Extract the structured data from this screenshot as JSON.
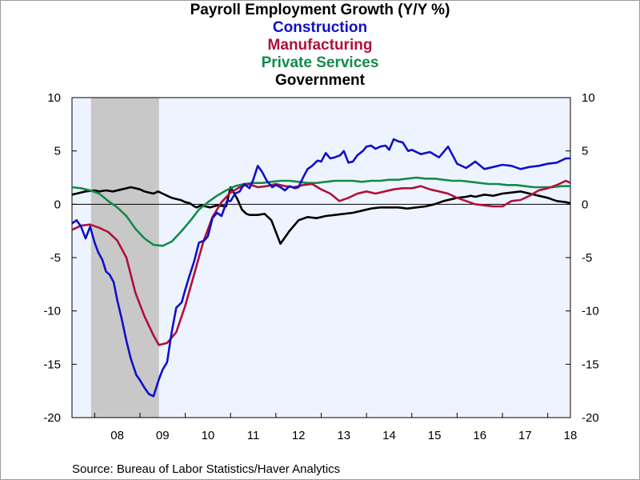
{
  "title": "Payroll Employment Growth (Y/Y %)",
  "legend": [
    {
      "name": "Construction",
      "color": "#1010c8"
    },
    {
      "name": "Manufacturing",
      "color": "#b0103a"
    },
    {
      "name": "Private Services",
      "color": "#138a4a"
    },
    {
      "name": "Government",
      "color": "#000000"
    }
  ],
  "source": "Source:  Bureau of Labor Statistics/Haver Analytics",
  "colors": {
    "plot_background": "#eef4ff",
    "recession_shade": "#c8c8c8",
    "zero_line": "#000000"
  },
  "chart_data": {
    "type": "line",
    "title": "Payroll Employment Growth (Y/Y %)",
    "xlabel": "",
    "ylabel": "",
    "x_range": [
      2007.5,
      2018.5
    ],
    "ylim": [
      -20,
      10
    ],
    "yticks": [
      10,
      5,
      0,
      -5,
      -10,
      -15,
      -20
    ],
    "ytick_labels": [
      "10",
      "5",
      "0",
      "-5",
      "-10",
      "-15",
      "-20"
    ],
    "xtick_labels": [
      {
        "x": 2008.5,
        "label": "08"
      },
      {
        "x": 2009.5,
        "label": "09"
      },
      {
        "x": 2010.5,
        "label": "10"
      },
      {
        "x": 2011.5,
        "label": "11"
      },
      {
        "x": 2012.5,
        "label": "12"
      },
      {
        "x": 2013.5,
        "label": "13"
      },
      {
        "x": 2014.5,
        "label": "14"
      },
      {
        "x": 2015.5,
        "label": "15"
      },
      {
        "x": 2016.5,
        "label": "16"
      },
      {
        "x": 2017.5,
        "label": "17"
      },
      {
        "x": 2018.5,
        "label": "18"
      }
    ],
    "recession": [
      2007.92,
      2009.42
    ],
    "grid": false,
    "legend_position": "top-center",
    "series": [
      {
        "name": "Construction",
        "color": "#1010c8",
        "x": [
          2007.5,
          2007.6,
          2007.7,
          2007.8,
          2007.9,
          2008.0,
          2008.08,
          2008.17,
          2008.25,
          2008.33,
          2008.42,
          2008.5,
          2008.6,
          2008.7,
          2008.8,
          2008.92,
          2009.0,
          2009.1,
          2009.2,
          2009.3,
          2009.42,
          2009.5,
          2009.6,
          2009.7,
          2009.8,
          2009.92,
          2010.0,
          2010.1,
          2010.2,
          2010.3,
          2010.42,
          2010.5,
          2010.6,
          2010.7,
          2010.8,
          2010.92,
          2011.0,
          2011.1,
          2011.2,
          2011.3,
          2011.42,
          2011.5,
          2011.6,
          2011.7,
          2011.8,
          2011.92,
          2012.0,
          2012.1,
          2012.2,
          2012.3,
          2012.42,
          2012.5,
          2012.6,
          2012.7,
          2012.8,
          2012.92,
          2013.0,
          2013.1,
          2013.2,
          2013.3,
          2013.42,
          2013.5,
          2013.6,
          2013.7,
          2013.8,
          2013.92,
          2014.0,
          2014.1,
          2014.2,
          2014.3,
          2014.42,
          2014.5,
          2014.6,
          2014.7,
          2014.8,
          2014.92,
          2015.0,
          2015.2,
          2015.4,
          2015.6,
          2015.8,
          2016.0,
          2016.2,
          2016.4,
          2016.6,
          2016.8,
          2017.0,
          2017.2,
          2017.4,
          2017.6,
          2017.8,
          2018.0,
          2018.2,
          2018.4,
          2018.5
        ],
        "values": [
          -1.8,
          -1.5,
          -2.1,
          -3.2,
          -2.1,
          -3.6,
          -4.5,
          -5.2,
          -6.3,
          -6.6,
          -7.3,
          -9.0,
          -10.8,
          -12.8,
          -14.5,
          -16.0,
          -16.5,
          -17.2,
          -17.8,
          -18.0,
          -16.4,
          -15.5,
          -14.8,
          -12.0,
          -9.7,
          -9.2,
          -8.0,
          -6.6,
          -5.3,
          -3.6,
          -3.4,
          -3.0,
          -1.3,
          -0.8,
          -1.1,
          0.3,
          0.3,
          1.0,
          1.2,
          1.9,
          1.5,
          2.3,
          3.6,
          3.0,
          2.2,
          1.6,
          1.8,
          1.6,
          1.3,
          1.7,
          1.5,
          1.6,
          2.5,
          3.3,
          3.6,
          4.1,
          4.0,
          4.8,
          4.3,
          4.4,
          4.6,
          5.0,
          3.9,
          4.0,
          4.6,
          5.0,
          5.4,
          5.5,
          5.2,
          5.4,
          5.5,
          5.1,
          6.1,
          5.9,
          5.8,
          5.0,
          5.1,
          4.7,
          4.9,
          4.4,
          5.4,
          3.8,
          3.4,
          4.0,
          3.3,
          3.5,
          3.7,
          3.6,
          3.3,
          3.5,
          3.6,
          3.8,
          3.9,
          4.3,
          4.3
        ]
      },
      {
        "name": "Manufacturing",
        "color": "#b0103a",
        "x": [
          2007.5,
          2007.7,
          2007.9,
          2008.1,
          2008.3,
          2008.5,
          2008.7,
          2008.9,
          2009.1,
          2009.3,
          2009.42,
          2009.6,
          2009.8,
          2010.0,
          2010.2,
          2010.4,
          2010.6,
          2010.8,
          2011.0,
          2011.2,
          2011.4,
          2011.6,
          2011.8,
          2012.0,
          2012.2,
          2012.4,
          2012.6,
          2012.8,
          2013.0,
          2013.2,
          2013.4,
          2013.6,
          2013.8,
          2014.0,
          2014.2,
          2014.4,
          2014.6,
          2014.8,
          2015.0,
          2015.2,
          2015.4,
          2015.6,
          2015.8,
          2016.0,
          2016.2,
          2016.4,
          2016.6,
          2016.8,
          2017.0,
          2017.2,
          2017.4,
          2017.6,
          2017.8,
          2018.0,
          2018.2,
          2018.4,
          2018.5
        ],
        "values": [
          -2.4,
          -2.0,
          -1.9,
          -2.2,
          -2.6,
          -3.4,
          -5.0,
          -8.3,
          -10.5,
          -12.3,
          -13.2,
          -13.0,
          -12.0,
          -9.5,
          -6.5,
          -3.5,
          -1.2,
          0.2,
          1.1,
          1.6,
          1.9,
          1.6,
          1.7,
          1.9,
          1.7,
          1.6,
          1.8,
          1.9,
          1.4,
          1.0,
          0.3,
          0.6,
          1.0,
          1.2,
          1.0,
          1.2,
          1.4,
          1.5,
          1.5,
          1.7,
          1.4,
          1.2,
          1.0,
          0.6,
          0.3,
          0.0,
          -0.1,
          -0.2,
          -0.2,
          0.3,
          0.4,
          0.8,
          1.3,
          1.5,
          1.8,
          2.2,
          2.0
        ]
      },
      {
        "name": "Private Services",
        "color": "#138a4a",
        "x": [
          2007.5,
          2007.7,
          2007.9,
          2008.1,
          2008.3,
          2008.5,
          2008.7,
          2008.9,
          2009.1,
          2009.3,
          2009.5,
          2009.7,
          2009.9,
          2010.1,
          2010.3,
          2010.5,
          2010.7,
          2010.9,
          2011.1,
          2011.3,
          2011.5,
          2011.7,
          2011.9,
          2012.1,
          2012.3,
          2012.5,
          2012.7,
          2012.9,
          2013.1,
          2013.3,
          2013.5,
          2013.7,
          2013.9,
          2014.1,
          2014.3,
          2014.5,
          2014.7,
          2014.9,
          2015.1,
          2015.3,
          2015.5,
          2015.7,
          2015.9,
          2016.1,
          2016.3,
          2016.5,
          2016.7,
          2016.9,
          2017.1,
          2017.3,
          2017.5,
          2017.7,
          2017.9,
          2018.1,
          2018.3,
          2018.5
        ],
        "values": [
          1.6,
          1.5,
          1.3,
          1.0,
          0.3,
          -0.3,
          -1.1,
          -2.3,
          -3.2,
          -3.8,
          -3.9,
          -3.5,
          -2.6,
          -1.6,
          -0.5,
          0.2,
          0.8,
          1.3,
          1.7,
          1.9,
          2.0,
          2.0,
          2.1,
          2.2,
          2.2,
          2.1,
          2.0,
          2.0,
          2.1,
          2.2,
          2.2,
          2.2,
          2.1,
          2.2,
          2.2,
          2.3,
          2.3,
          2.4,
          2.5,
          2.4,
          2.4,
          2.3,
          2.2,
          2.2,
          2.1,
          2.0,
          1.9,
          1.9,
          1.8,
          1.8,
          1.7,
          1.6,
          1.6,
          1.6,
          1.7,
          1.7
        ]
      },
      {
        "name": "Government",
        "color": "#000000",
        "x": [
          2007.5,
          2007.6,
          2007.8,
          2008.0,
          2008.1,
          2008.25,
          2008.4,
          2008.6,
          2008.8,
          2009.0,
          2009.1,
          2009.2,
          2009.3,
          2009.4,
          2009.5,
          2009.6,
          2009.7,
          2009.8,
          2009.9,
          2010.0,
          2010.1,
          2010.2,
          2010.25,
          2010.35,
          2010.45,
          2010.55,
          2010.7,
          2010.9,
          2011.0,
          2011.15,
          2011.25,
          2011.35,
          2011.42,
          2011.5,
          2011.6,
          2011.75,
          2011.9,
          2012.1,
          2012.3,
          2012.5,
          2012.7,
          2012.9,
          2013.1,
          2013.3,
          2013.5,
          2013.7,
          2013.9,
          2014.1,
          2014.3,
          2014.5,
          2014.7,
          2014.9,
          2015.1,
          2015.3,
          2015.5,
          2015.7,
          2015.9,
          2016.0,
          2016.2,
          2016.3,
          2016.4,
          2016.6,
          2016.8,
          2017.0,
          2017.2,
          2017.4,
          2017.6,
          2017.8,
          2018.0,
          2018.2,
          2018.4,
          2018.5
        ],
        "values": [
          0.9,
          1.0,
          1.2,
          1.3,
          1.2,
          1.3,
          1.2,
          1.4,
          1.6,
          1.4,
          1.2,
          1.1,
          1.0,
          1.2,
          1.0,
          0.8,
          0.6,
          0.5,
          0.4,
          0.2,
          0.1,
          -0.2,
          -0.3,
          -0.1,
          -0.2,
          -0.3,
          -0.1,
          -0.2,
          1.6,
          0.5,
          -0.5,
          -0.9,
          -1.0,
          -1.0,
          -1.0,
          -0.9,
          -1.5,
          -3.7,
          -2.5,
          -1.5,
          -1.2,
          -1.3,
          -1.1,
          -1.0,
          -0.9,
          -0.8,
          -0.6,
          -0.4,
          -0.3,
          -0.3,
          -0.3,
          -0.4,
          -0.3,
          -0.2,
          0.0,
          0.3,
          0.5,
          0.6,
          0.7,
          0.8,
          0.7,
          0.9,
          0.8,
          1.0,
          1.1,
          1.2,
          1.0,
          0.8,
          0.6,
          0.3,
          0.2,
          0.1
        ]
      }
    ]
  }
}
